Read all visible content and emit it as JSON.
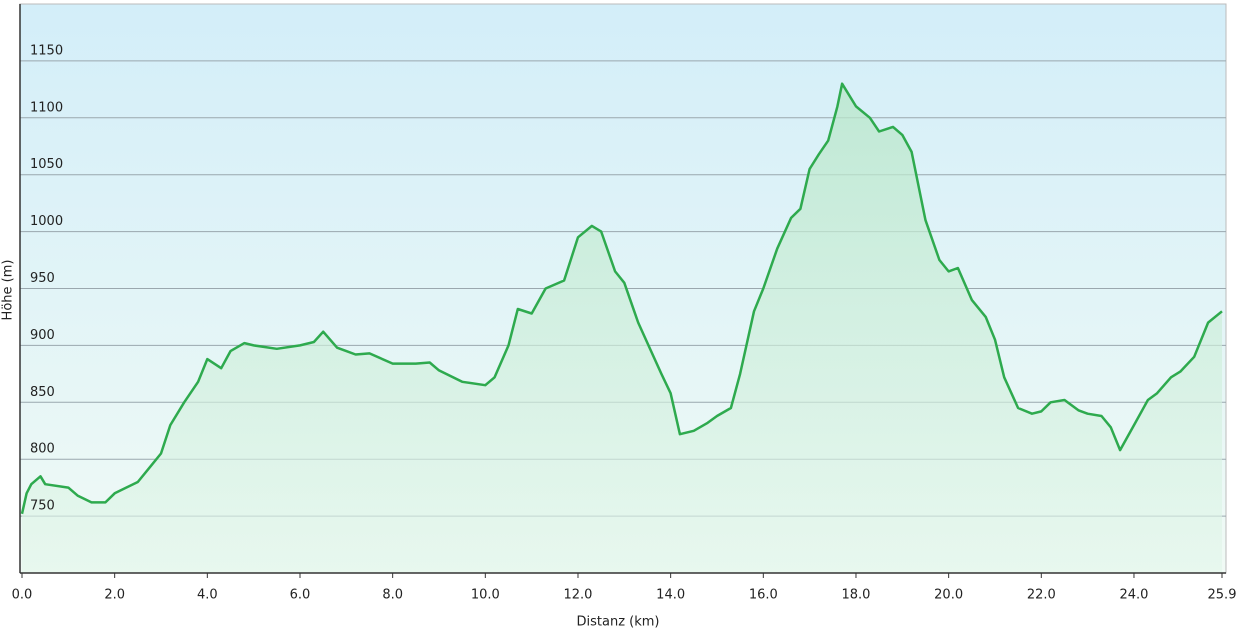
{
  "chart_data": {
    "type": "area",
    "xlabel": "Distanz  (km)",
    "ylabel": "Höhe (m)",
    "x": [
      0,
      0.1,
      0.2,
      0.4,
      0.5,
      1.0,
      1.2,
      1.5,
      1.8,
      2.0,
      2.5,
      2.8,
      3.0,
      3.2,
      3.5,
      3.8,
      4.0,
      4.3,
      4.5,
      4.8,
      5.0,
      5.5,
      6.0,
      6.3,
      6.5,
      6.8,
      7.0,
      7.2,
      7.5,
      8.0,
      8.5,
      8.8,
      9.0,
      9.5,
      10.0,
      10.2,
      10.5,
      10.7,
      11.0,
      11.3,
      11.7,
      12.0,
      12.3,
      12.5,
      12.8,
      13.0,
      13.3,
      13.6,
      13.8,
      14.0,
      14.2,
      14.5,
      14.8,
      15.0,
      15.3,
      15.5,
      15.8,
      16.0,
      16.3,
      16.6,
      16.8,
      17.0,
      17.2,
      17.4,
      17.6,
      17.7,
      18.0,
      18.3,
      18.5,
      18.8,
      19.0,
      19.2,
      19.5,
      19.8,
      20.0,
      20.2,
      20.5,
      20.8,
      21.0,
      21.2,
      21.5,
      21.8,
      22.0,
      22.2,
      22.5,
      22.8,
      23.0,
      23.3,
      23.5,
      23.7,
      24.0,
      24.3,
      24.5,
      24.8,
      25.0,
      25.3,
      25.6,
      25.9
    ],
    "values": [
      752,
      770,
      778,
      785,
      778,
      775,
      768,
      762,
      762,
      770,
      780,
      795,
      805,
      830,
      850,
      868,
      888,
      880,
      895,
      902,
      900,
      897,
      900,
      903,
      912,
      898,
      895,
      892,
      893,
      884,
      884,
      885,
      878,
      868,
      865,
      872,
      900,
      932,
      928,
      950,
      957,
      995,
      1005,
      1000,
      965,
      955,
      920,
      893,
      875,
      858,
      822,
      825,
      832,
      838,
      845,
      875,
      930,
      950,
      985,
      1012,
      1020,
      1055,
      1068,
      1080,
      1110,
      1130,
      1110,
      1100,
      1088,
      1092,
      1085,
      1070,
      1010,
      975,
      965,
      968,
      940,
      925,
      905,
      872,
      845,
      840,
      842,
      850,
      852,
      843,
      840,
      838,
      828,
      808,
      830,
      852,
      858,
      872,
      877,
      890,
      920,
      930
    ],
    "color": "#2eaa4e",
    "xlim": [
      0,
      25.9
    ],
    "xticks": [
      {
        "value": 0,
        "label": "0.0"
      },
      {
        "value": 2,
        "label": "2.0"
      },
      {
        "value": 4,
        "label": "4.0"
      },
      {
        "value": 6,
        "label": "6.0"
      },
      {
        "value": 8,
        "label": "8.0"
      },
      {
        "value": 10,
        "label": "10.0"
      },
      {
        "value": 12,
        "label": "12.0"
      },
      {
        "value": 14,
        "label": "14.0"
      },
      {
        "value": 16,
        "label": "16.0"
      },
      {
        "value": 18,
        "label": "18.0"
      },
      {
        "value": 20,
        "label": "20.0"
      },
      {
        "value": 22,
        "label": "22.0"
      },
      {
        "value": 24,
        "label": "24.0"
      },
      {
        "value": 25.9,
        "label": "25.9"
      }
    ],
    "ylim": [
      700,
      1200
    ],
    "yticks": [
      750,
      800,
      850,
      900,
      950,
      1000,
      1050,
      1100,
      1150
    ],
    "grid": true
  }
}
